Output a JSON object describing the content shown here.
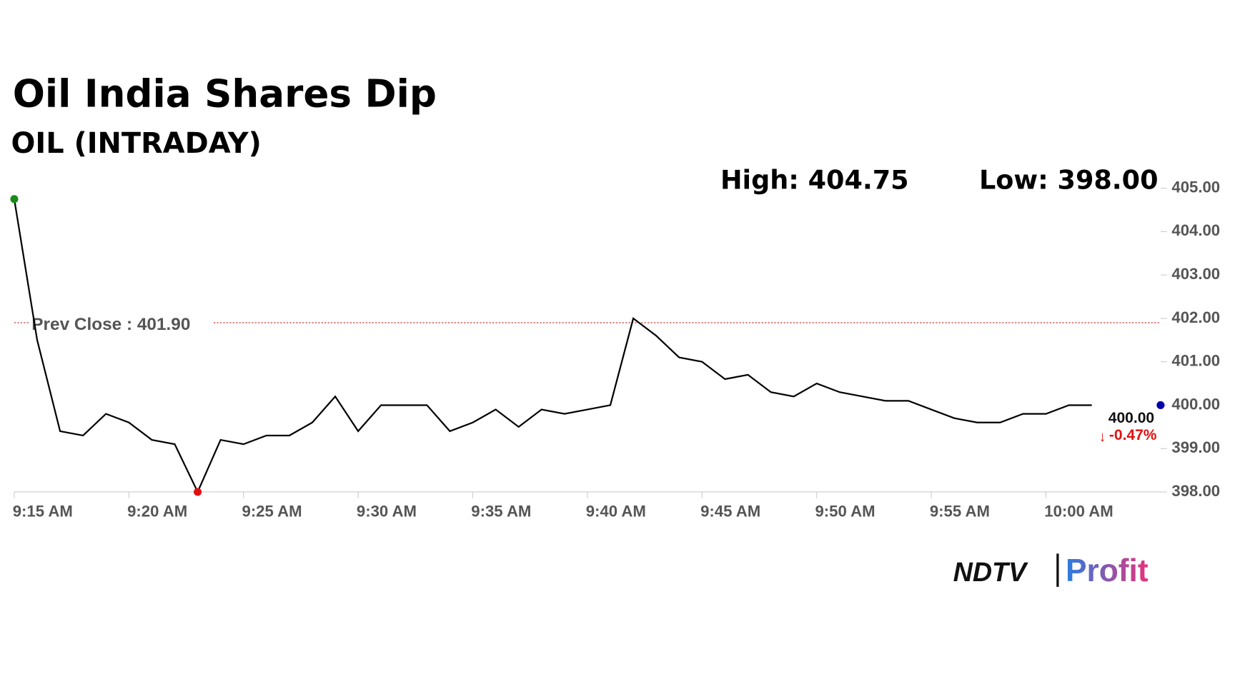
{
  "chart_data": {
    "type": "line",
    "title": "Oil India Shares Dip",
    "subtitle": "OIL (INTRADAY)",
    "high_label": "High: 404.75",
    "low_label": "Low: 398.00",
    "prev_close": {
      "value": 401.9,
      "label": "Prev Close : 401.90",
      "color": "#c00000"
    },
    "last_value_label": "400.00",
    "change_label": "-0.47%",
    "logo": {
      "left": "NDTV",
      "right": "Profit"
    },
    "x": [
      "9:15 AM",
      "9:16 AM",
      "9:17 AM",
      "9:18 AM",
      "9:19 AM",
      "9:20 AM",
      "9:21 AM",
      "9:22 AM",
      "9:23 AM",
      "9:24 AM",
      "9:25 AM",
      "9:26 AM",
      "9:27 AM",
      "9:28 AM",
      "9:29 AM",
      "9:30 AM",
      "9:31 AM",
      "9:32 AM",
      "9:33 AM",
      "9:34 AM",
      "9:35 AM",
      "9:36 AM",
      "9:37 AM",
      "9:38 AM",
      "9:39 AM",
      "9:40 AM",
      "9:41 AM",
      "9:42 AM",
      "9:43 AM",
      "9:44 AM",
      "9:45 AM",
      "9:46 AM",
      "9:47 AM",
      "9:48 AM",
      "9:49 AM",
      "9:50 AM",
      "9:51 AM",
      "9:52 AM",
      "9:53 AM",
      "9:54 AM",
      "9:55 AM",
      "9:56 AM",
      "9:57 AM",
      "9:58 AM",
      "9:59 AM",
      "10:00 AM",
      "10:01 AM",
      "10:02 AM"
    ],
    "series": [
      {
        "name": "OIL",
        "color": "#000000",
        "values": [
          404.75,
          401.5,
          399.4,
          399.3,
          399.8,
          399.6,
          399.2,
          399.1,
          398.0,
          399.2,
          399.1,
          399.3,
          399.3,
          399.6,
          400.2,
          399.4,
          400.0,
          400.0,
          400.0,
          399.4,
          399.6,
          399.9,
          399.5,
          399.9,
          399.8,
          399.9,
          400.0,
          402.0,
          401.6,
          401.1,
          401.0,
          400.6,
          400.7,
          400.3,
          400.2,
          400.5,
          400.3,
          400.2,
          400.1,
          400.1,
          399.9,
          399.7,
          399.6,
          399.6,
          399.8,
          399.8,
          400.0,
          400.0
        ]
      }
    ],
    "xlim": [
      "9:15 AM",
      "10:05 AM"
    ],
    "xticks": [
      "9:15 AM",
      "9:20 AM",
      "9:25 AM",
      "9:30 AM",
      "9:35 AM",
      "9:40 AM",
      "9:45 AM",
      "9:50 AM",
      "9:55 AM",
      "10:00 AM"
    ],
    "ylim": [
      398,
      405
    ],
    "yticks": [
      {
        "value": 398,
        "label": "398.00"
      },
      {
        "value": 399,
        "label": "399.00"
      },
      {
        "value": 400,
        "label": "400.00"
      },
      {
        "value": 401,
        "label": "401.00"
      },
      {
        "value": 402,
        "label": "402.00"
      },
      {
        "value": 403,
        "label": "403.00"
      },
      {
        "value": 404,
        "label": "404.00"
      },
      {
        "value": 405,
        "label": "405.00"
      }
    ],
    "markers": {
      "start_color": "#1a8a1a",
      "low_color": "#e01010",
      "end_color": "#0000aa"
    }
  }
}
